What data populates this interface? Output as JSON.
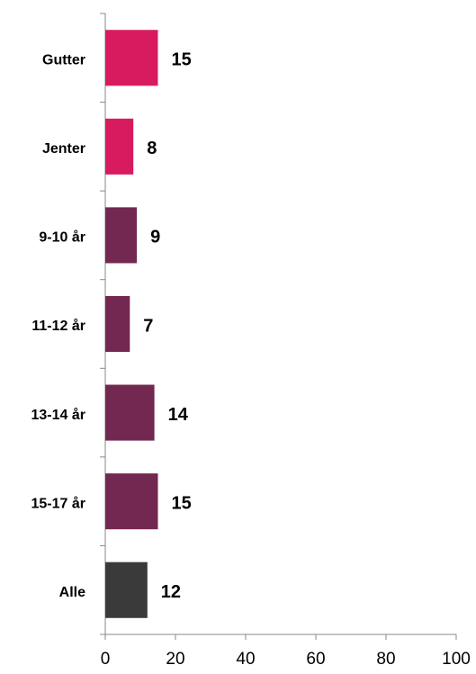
{
  "chart_data": {
    "type": "bar",
    "orientation": "horizontal",
    "categories": [
      "Gutter",
      "Jenter",
      "9-10 år",
      "11-12 år",
      "13-14 år",
      "15-17 år",
      "Alle"
    ],
    "values": [
      15,
      8,
      9,
      7,
      14,
      15,
      12
    ],
    "colors": [
      "#d81b5e",
      "#d81b5e",
      "#722850",
      "#722850",
      "#722850",
      "#722850",
      "#3a3a3a"
    ],
    "xlim": [
      0,
      100
    ],
    "xticks": [
      0,
      20,
      40,
      60,
      80,
      100
    ],
    "grid": false
  }
}
